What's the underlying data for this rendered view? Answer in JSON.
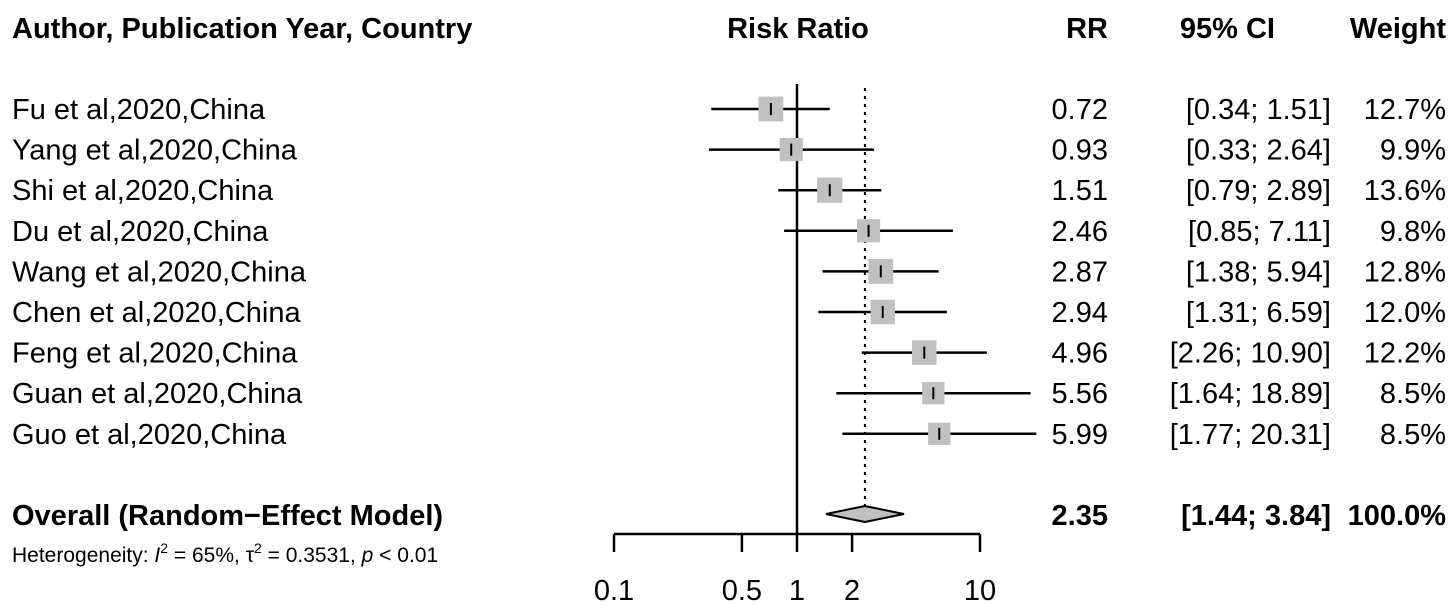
{
  "chart_data": {
    "type": "forest",
    "columns": {
      "study": "Author, Publication Year, Country",
      "plot": "Risk Ratio",
      "rr": "RR",
      "ci": "95% CI",
      "weight": "Weight"
    },
    "scale": "log",
    "xlim": [
      0.1,
      10
    ],
    "xticks": [
      0.1,
      0.5,
      1,
      2,
      10
    ],
    "xtick_labels": [
      "0.1",
      "0.5",
      "1",
      "2",
      "10"
    ],
    "reference_line": 1,
    "overall_line": 2.35,
    "studies": [
      {
        "label": "Fu et al,2020,China",
        "rr": 0.72,
        "lo": 0.34,
        "hi": 1.51,
        "weight": 12.7,
        "rr_text": "0.72",
        "ci_text": "[0.34; 1.51]",
        "weight_text": "12.7%"
      },
      {
        "label": "Yang et al,2020,China",
        "rr": 0.93,
        "lo": 0.33,
        "hi": 2.64,
        "weight": 9.9,
        "rr_text": "0.93",
        "ci_text": "[0.33; 2.64]",
        "weight_text": "9.9%"
      },
      {
        "label": "Shi et al,2020,China",
        "rr": 1.51,
        "lo": 0.79,
        "hi": 2.89,
        "weight": 13.6,
        "rr_text": "1.51",
        "ci_text": "[0.79; 2.89]",
        "weight_text": "13.6%"
      },
      {
        "label": "Du et al,2020,China",
        "rr": 2.46,
        "lo": 0.85,
        "hi": 7.11,
        "weight": 9.8,
        "rr_text": "2.46",
        "ci_text": "[0.85; 7.11]",
        "weight_text": "9.8%"
      },
      {
        "label": "Wang et al,2020,China",
        "rr": 2.87,
        "lo": 1.38,
        "hi": 5.94,
        "weight": 12.8,
        "rr_text": "2.87",
        "ci_text": "[1.38; 5.94]",
        "weight_text": "12.8%"
      },
      {
        "label": "Chen et al,2020,China",
        "rr": 2.94,
        "lo": 1.31,
        "hi": 6.59,
        "weight": 12.0,
        "rr_text": "2.94",
        "ci_text": "[1.31; 6.59]",
        "weight_text": "12.0%"
      },
      {
        "label": "Feng et al,2020,China",
        "rr": 4.96,
        "lo": 2.26,
        "hi": 10.9,
        "weight": 12.2,
        "rr_text": "4.96",
        "ci_text": "[2.26; 10.90]",
        "weight_text": "12.2%"
      },
      {
        "label": "Guan et al,2020,China",
        "rr": 5.56,
        "lo": 1.64,
        "hi": 18.89,
        "weight": 8.5,
        "rr_text": "5.56",
        "ci_text": "[1.64; 18.89]",
        "weight_text": "8.5%"
      },
      {
        "label": "Guo et al,2020,China",
        "rr": 5.99,
        "lo": 1.77,
        "hi": 20.31,
        "weight": 8.5,
        "rr_text": "5.99",
        "ci_text": "[1.77; 20.31]",
        "weight_text": "8.5%"
      }
    ],
    "overall": {
      "label": "Overall (Random−Effect Model)",
      "rr": 2.35,
      "lo": 1.44,
      "hi": 3.84,
      "rr_text": "2.35",
      "ci_text": "[1.44; 3.84]",
      "weight_text": "100.0%"
    },
    "heterogeneity": {
      "prefix": "Heterogeneity: ",
      "i2_symbol": "I",
      "i2_value": " = 65%, ",
      "tau2_symbol": "τ",
      "tau2_value": " = 0.3531, ",
      "p_symbol": "p",
      "p_value": " < 0.01"
    },
    "colors": {
      "box": "#c0c0c0",
      "line": "#000000",
      "text": "#000000"
    }
  }
}
